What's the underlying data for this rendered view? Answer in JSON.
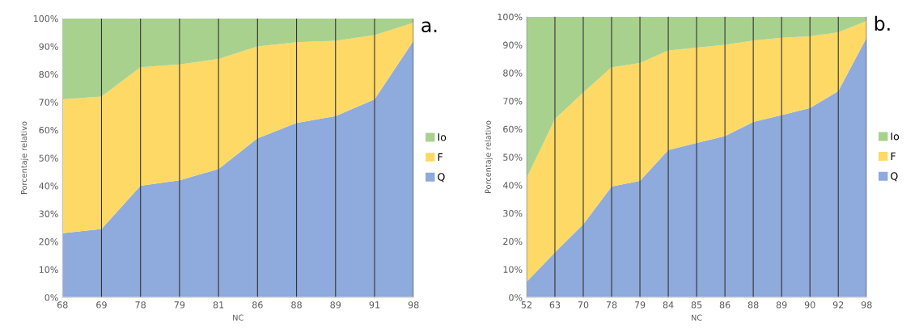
{
  "chart_data": [
    {
      "type": "area",
      "stacked": true,
      "xlabel": "NC",
      "ylabel": "Porcentaje relativo",
      "annotations": [
        "a."
      ],
      "categories": [
        "68",
        "69",
        "78",
        "79",
        "81",
        "86",
        "88",
        "89",
        "91",
        "98"
      ],
      "ylim": [
        0,
        100
      ],
      "yticks": [
        {
          "value": 0,
          "label": "0%"
        },
        {
          "value": 10,
          "label": "10%"
        },
        {
          "value": 20,
          "label": "20%"
        },
        {
          "value": 30,
          "label": "30%"
        },
        {
          "value": 40,
          "label": "40%"
        },
        {
          "value": 50,
          "label": "50%"
        },
        {
          "value": 60,
          "label": "60%"
        },
        {
          "value": 70,
          "label": "70%"
        },
        {
          "value": 80,
          "label": "80%"
        },
        {
          "value": 90,
          "label": "90%"
        },
        {
          "value": 100,
          "label": "100%"
        }
      ],
      "grid": "x",
      "legend": "right",
      "series": [
        {
          "name": "Q",
          "color": "#8faadc",
          "values": [
            23,
            24.5,
            40,
            42,
            46,
            57,
            62.5,
            65,
            71,
            92
          ]
        },
        {
          "name": "F",
          "color": "#ffd966",
          "values": [
            48,
            47.5,
            42.5,
            41.5,
            39.5,
            33,
            29,
            27,
            23,
            6.5
          ]
        },
        {
          "name": "Io",
          "color": "#a9d18e",
          "values": [
            29,
            28,
            17.5,
            16.5,
            14.5,
            10,
            8.5,
            8,
            6,
            1.5
          ]
        }
      ]
    },
    {
      "type": "area",
      "stacked": true,
      "xlabel": "NC",
      "ylabel": "Porcentaje relativo",
      "annotations": [
        "b."
      ],
      "categories": [
        "52",
        "63",
        "70",
        "78",
        "79",
        "84",
        "85",
        "86",
        "88",
        "89",
        "90",
        "92",
        "98"
      ],
      "ylim": [
        0,
        100
      ],
      "yticks": [
        {
          "value": 0,
          "label": "0%"
        },
        {
          "value": 10,
          "label": "10%"
        },
        {
          "value": 20,
          "label": "20%"
        },
        {
          "value": 30,
          "label": "30%"
        },
        {
          "value": 40,
          "label": "40%"
        },
        {
          "value": 50,
          "label": "50%"
        },
        {
          "value": 60,
          "label": "60%"
        },
        {
          "value": 70,
          "label": "70%"
        },
        {
          "value": 80,
          "label": "80%"
        },
        {
          "value": 90,
          "label": "90%"
        },
        {
          "value": 100,
          "label": "100%"
        }
      ],
      "grid": "x",
      "legend": "right",
      "series": [
        {
          "name": "Q",
          "color": "#8faadc",
          "values": [
            5.5,
            16,
            26,
            39.5,
            41.5,
            52.5,
            55,
            57.5,
            62.5,
            65,
            67.5,
            73.5,
            92.5
          ]
        },
        {
          "name": "F",
          "color": "#ffd966",
          "values": [
            37,
            47.5,
            47,
            42.5,
            42,
            35.5,
            34,
            32.5,
            29,
            27.5,
            25.5,
            21,
            6
          ]
        },
        {
          "name": "Io",
          "color": "#a9d18e",
          "values": [
            57.5,
            36.5,
            27,
            18,
            16.5,
            12,
            11,
            10,
            8.5,
            7.5,
            7,
            5.5,
            1.5
          ]
        }
      ]
    }
  ]
}
